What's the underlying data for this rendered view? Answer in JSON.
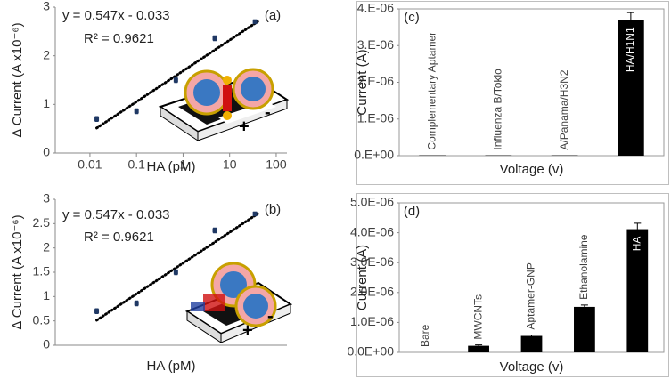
{
  "chart_data": [
    {
      "type": "scatter",
      "panel": "(a)",
      "xlabel": "HA (pM)",
      "ylabel": "Δ Current (A x10⁻⁶)",
      "xscale": "log",
      "xlim": [
        0.0018,
        170
      ],
      "xticks": [
        0.01,
        0.1,
        1,
        10,
        100
      ],
      "ylim": [
        0,
        3
      ],
      "yticks": [
        0,
        1,
        2,
        3
      ],
      "x": [
        0.014,
        0.1,
        0.7,
        4.8,
        35
      ],
      "values": [
        0.7,
        0.86,
        1.5,
        2.36,
        2.7
      ],
      "errors": [
        0.05,
        0.05,
        0.05,
        0.05,
        0.04
      ],
      "color": "#1f3864",
      "trendline": {
        "x": [
          0.014,
          40
        ],
        "y": [
          0.514,
          2.702
        ]
      },
      "annotations": [
        "y = 0.547x - 0.033",
        "R² = 0.9621",
        "+",
        "-"
      ]
    },
    {
      "type": "scatter",
      "panel": "(b)",
      "xlabel": "HA (pM)",
      "ylabel": "Δ Current (A x10⁻⁶)",
      "xscale": "log",
      "xlim": [
        0.0018,
        170
      ],
      "ylim": [
        0,
        3
      ],
      "yticks": [
        0,
        0.5,
        1,
        1.5,
        2,
        2.5,
        3
      ],
      "x": [
        0.014,
        0.1,
        0.7,
        4.8,
        35
      ],
      "values": [
        0.7,
        0.86,
        1.5,
        2.36,
        2.7
      ],
      "errors": [
        0.05,
        0.05,
        0.05,
        0.05,
        0.04
      ],
      "color": "#1f3864",
      "trendline": {
        "x": [
          0.014,
          40
        ],
        "y": [
          0.514,
          2.702
        ]
      },
      "annotations": [
        "y = 0.547x - 0.033",
        "R² = 0.9621",
        "+",
        "-"
      ]
    },
    {
      "type": "bar",
      "panel": "(c)",
      "xlabel": "Voltage (v)",
      "ylabel": "Current (A)",
      "ylim": [
        0,
        4e-06
      ],
      "yticks": [
        {
          "value": 0,
          "label": "0.E+00"
        },
        {
          "value": 1e-06,
          "label": "1.E-06"
        },
        {
          "value": 2e-06,
          "label": "2.E-06"
        },
        {
          "value": 3e-06,
          "label": "3.E-06"
        },
        {
          "value": 4e-06,
          "label": "4.E-06"
        }
      ],
      "categories": [
        "Complementary Aptamer",
        "Influenza B/Tokio",
        "A/Panama/H3N2",
        "HA/H1N1"
      ],
      "values": [
        1e-08,
        1e-08,
        1e-08,
        3.7e-06
      ],
      "errors": [
        0,
        0,
        0,
        2e-07
      ],
      "color": "#000000"
    },
    {
      "type": "bar",
      "panel": "(d)",
      "xlabel": "Voltage (v)",
      "ylabel": "Current (A)",
      "ylim": [
        0,
        5e-06
      ],
      "yticks": [
        {
          "value": 0,
          "label": "0.0E+00"
        },
        {
          "value": 1e-06,
          "label": "1.0E-06"
        },
        {
          "value": 2e-06,
          "label": "2.0E-06"
        },
        {
          "value": 3e-06,
          "label": "3.0E-06"
        },
        {
          "value": 4e-06,
          "label": "4.0E-06"
        },
        {
          "value": 5e-06,
          "label": "5.0E-06"
        }
      ],
      "categories": [
        "Bare",
        "MWCNTs",
        "Aptamer-GNP",
        "Ethanolamine",
        "HA"
      ],
      "values": [
        0,
        2.2e-07,
        5.5e-07,
        1.52e-06,
        4.12e-06
      ],
      "errors": [
        0,
        3e-08,
        3e-08,
        6e-08,
        2e-07
      ],
      "color": "#000000"
    }
  ]
}
